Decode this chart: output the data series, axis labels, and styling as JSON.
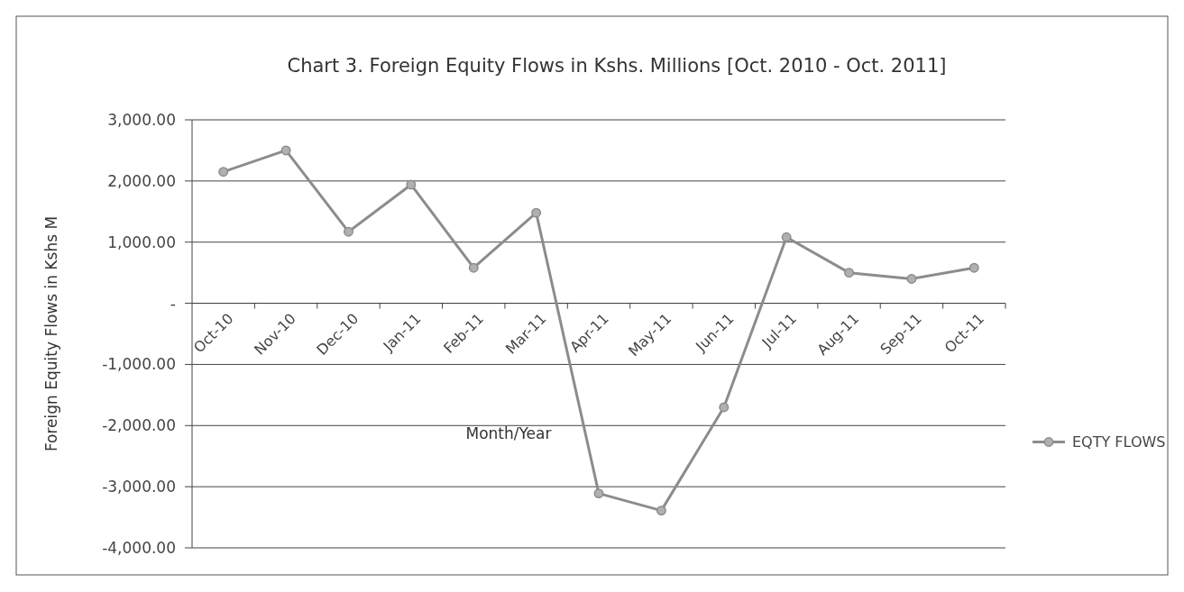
{
  "chart_data": {
    "type": "line",
    "title": "Chart 3. Foreign Equity Flows in Kshs. Millions [Oct. 2010 - Oct. 2011]",
    "xlabel": "Month/Year",
    "ylabel": "Foreign Equity Flows in Kshs M",
    "categories": [
      "Oct-10",
      "Nov-10",
      "Dec-10",
      "Jan-11",
      "Feb-11",
      "Mar-11",
      "Apr-11",
      "May-11",
      "Jun-11",
      "Jul-11",
      "Aug-11",
      "Sep-11",
      "Oct-11"
    ],
    "series": [
      {
        "name": "EQTY FLOWS",
        "color": "#8c8c8c",
        "values": [
          2150,
          2500,
          1170,
          1940,
          580,
          1480,
          -3110,
          -3390,
          -1700,
          1080,
          500,
          400,
          580
        ]
      }
    ],
    "ylim": [
      -4000,
      3000
    ],
    "yticks": [
      {
        "value": -4000,
        "label": "-4,000.00"
      },
      {
        "value": -3000,
        "label": "-3,000.00"
      },
      {
        "value": -2000,
        "label": "-2,000.00"
      },
      {
        "value": -1000,
        "label": "-1,000.00"
      },
      {
        "value": 0,
        "label": "-"
      },
      {
        "value": 1000,
        "label": "1,000.00"
      },
      {
        "value": 2000,
        "label": "2,000.00"
      },
      {
        "value": 3000,
        "label": "3,000.00"
      }
    ],
    "grid": "y",
    "legend": "right",
    "marker": "circle",
    "line_style": "solid"
  }
}
